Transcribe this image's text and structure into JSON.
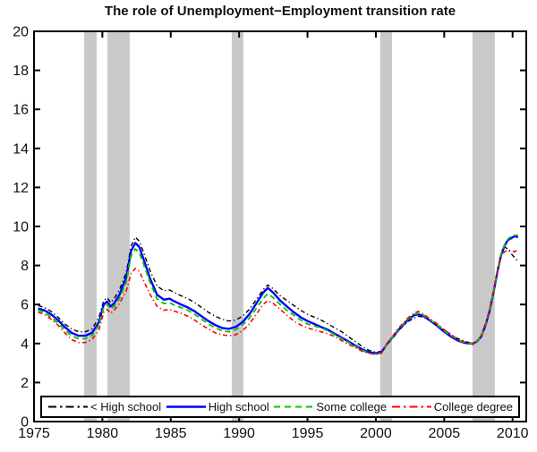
{
  "title": "The role of Unemployment−Employment transition rate",
  "colors": {
    "background": "#ffffff",
    "axis": "#000000",
    "recession_band": "#c9c9c9",
    "legend_border": "#000000"
  },
  "chart_data": {
    "type": "line",
    "title": "The role of Unemployment−Employment transition rate",
    "xlabel": "",
    "ylabel": "",
    "xlim": [
      1975,
      2011
    ],
    "ylim": [
      0,
      20
    ],
    "x_ticks": [
      1975,
      1980,
      1985,
      1990,
      1995,
      2000,
      2005,
      2010
    ],
    "y_ticks": [
      0,
      2,
      4,
      6,
      8,
      10,
      12,
      14,
      16,
      18,
      20
    ],
    "grid": false,
    "legend_position": "bottom-inside-horizontal",
    "shaded_regions": [
      {
        "name": "recession-band",
        "x0": 1978.67,
        "x1": 1979.58
      },
      {
        "name": "recession-band",
        "x0": 1980.37,
        "x1": 1982.0
      },
      {
        "name": "recession-band",
        "x0": 1989.46,
        "x1": 1990.31
      },
      {
        "name": "recession-band",
        "x0": 2000.32,
        "x1": 2001.18
      },
      {
        "name": "recession-band",
        "x0": 2007.07,
        "x1": 2008.7
      }
    ],
    "x": [
      1975.3,
      1975.75,
      1976.25,
      1976.75,
      1977.25,
      1977.75,
      1978.25,
      1978.75,
      1979.25,
      1979.75,
      1980.1,
      1980.35,
      1980.6,
      1980.85,
      1981.25,
      1981.75,
      1982.1,
      1982.4,
      1982.7,
      1983.0,
      1983.5,
      1984.0,
      1984.5,
      1984.9,
      1985.3,
      1985.75,
      1986.25,
      1986.75,
      1987.25,
      1987.75,
      1988.25,
      1988.75,
      1989.25,
      1989.75,
      1990.25,
      1990.75,
      1991.25,
      1991.75,
      1992.1,
      1992.5,
      1993.0,
      1993.5,
      1994.0,
      1994.5,
      1995.0,
      1995.5,
      1996.0,
      1996.5,
      1997.0,
      1997.5,
      1998.0,
      1998.5,
      1999.0,
      1999.5,
      2000.0,
      2000.4,
      2000.8,
      2001.2,
      2001.6,
      2002.0,
      2002.4,
      2002.8,
      2003.1,
      2003.5,
      2004.0,
      2004.5,
      2005.0,
      2005.5,
      2006.0,
      2006.4,
      2006.8,
      2007.1,
      2007.4,
      2007.7,
      2008.0,
      2008.3,
      2008.6,
      2008.9,
      2009.15,
      2009.4,
      2009.65,
      2009.9,
      2010.15,
      2010.4
    ],
    "series": [
      {
        "name": "< High school",
        "color": "#000000",
        "line_style": "dashdot",
        "values": [
          5.95,
          5.85,
          5.65,
          5.35,
          5.0,
          4.75,
          4.6,
          4.6,
          4.75,
          5.35,
          6.2,
          6.35,
          6.1,
          6.3,
          6.75,
          7.65,
          9.0,
          9.45,
          9.25,
          8.7,
          7.7,
          6.95,
          6.7,
          6.75,
          6.6,
          6.45,
          6.3,
          6.1,
          5.85,
          5.6,
          5.4,
          5.25,
          5.15,
          5.2,
          5.4,
          5.75,
          6.25,
          6.75,
          7.0,
          6.8,
          6.45,
          6.2,
          5.95,
          5.7,
          5.5,
          5.35,
          5.2,
          5.0,
          4.8,
          4.6,
          4.35,
          4.1,
          3.85,
          3.65,
          3.55,
          3.6,
          3.95,
          4.25,
          4.6,
          4.9,
          5.15,
          5.3,
          5.4,
          5.35,
          5.15,
          4.95,
          4.7,
          4.45,
          4.25,
          4.15,
          4.05,
          4.0,
          4.1,
          4.35,
          4.95,
          5.65,
          6.7,
          7.8,
          8.55,
          8.95,
          8.85,
          8.6,
          8.4,
          8.2
        ]
      },
      {
        "name": "High school",
        "color": "#0000ff",
        "line_style": "solid",
        "values": [
          5.8,
          5.7,
          5.5,
          5.2,
          4.85,
          4.55,
          4.4,
          4.4,
          4.55,
          5.1,
          6.0,
          6.15,
          5.9,
          6.05,
          6.5,
          7.4,
          8.75,
          9.15,
          8.95,
          8.35,
          7.3,
          6.5,
          6.25,
          6.3,
          6.15,
          6.0,
          5.85,
          5.65,
          5.4,
          5.15,
          4.95,
          4.8,
          4.75,
          4.85,
          5.1,
          5.5,
          6.05,
          6.6,
          6.85,
          6.6,
          6.2,
          5.9,
          5.6,
          5.35,
          5.15,
          5.0,
          4.85,
          4.7,
          4.5,
          4.3,
          4.1,
          3.9,
          3.7,
          3.55,
          3.5,
          3.55,
          3.95,
          4.3,
          4.65,
          4.95,
          5.25,
          5.45,
          5.5,
          5.4,
          5.15,
          4.9,
          4.6,
          4.35,
          4.15,
          4.05,
          4.0,
          4.0,
          4.1,
          4.35,
          4.9,
          5.6,
          6.6,
          7.7,
          8.5,
          9.0,
          9.3,
          9.4,
          9.5,
          9.45
        ]
      },
      {
        "name": "Some college",
        "color": "#00cc00",
        "line_style": "dashed",
        "values": [
          5.7,
          5.6,
          5.35,
          5.05,
          4.7,
          4.4,
          4.25,
          4.25,
          4.4,
          4.95,
          5.85,
          6.0,
          5.75,
          5.9,
          6.3,
          7.15,
          8.5,
          8.85,
          8.65,
          8.1,
          7.1,
          6.3,
          6.05,
          6.1,
          5.95,
          5.85,
          5.7,
          5.5,
          5.25,
          5.0,
          4.8,
          4.65,
          4.6,
          4.7,
          4.95,
          5.3,
          5.8,
          6.3,
          6.55,
          6.35,
          6.0,
          5.7,
          5.45,
          5.2,
          5.0,
          4.9,
          4.8,
          4.65,
          4.45,
          4.25,
          4.05,
          3.85,
          3.65,
          3.5,
          3.45,
          3.5,
          3.95,
          4.3,
          4.7,
          5.0,
          5.3,
          5.5,
          5.55,
          5.45,
          5.2,
          4.95,
          4.65,
          4.4,
          4.2,
          4.05,
          4.0,
          4.0,
          4.1,
          4.35,
          4.95,
          5.65,
          6.65,
          7.75,
          8.55,
          9.05,
          9.35,
          9.5,
          9.55,
          9.55
        ]
      },
      {
        "name": "College degree",
        "color": "#ff0000",
        "line_style": "dashdot",
        "values": [
          5.6,
          5.5,
          5.25,
          4.95,
          4.55,
          4.2,
          4.05,
          4.05,
          4.2,
          4.7,
          5.6,
          5.75,
          5.55,
          5.7,
          6.05,
          6.7,
          7.6,
          7.85,
          7.7,
          7.25,
          6.5,
          5.9,
          5.7,
          5.75,
          5.65,
          5.55,
          5.4,
          5.2,
          4.95,
          4.75,
          4.55,
          4.45,
          4.4,
          4.45,
          4.65,
          5.0,
          5.5,
          6.0,
          6.2,
          6.05,
          5.75,
          5.45,
          5.15,
          4.95,
          4.8,
          4.7,
          4.6,
          4.5,
          4.35,
          4.15,
          3.95,
          3.8,
          3.6,
          3.5,
          3.45,
          3.5,
          4.0,
          4.35,
          4.75,
          5.05,
          5.35,
          5.55,
          5.65,
          5.5,
          5.25,
          5.0,
          4.7,
          4.45,
          4.2,
          4.1,
          4.0,
          3.95,
          4.15,
          4.4,
          5.0,
          5.7,
          6.7,
          7.75,
          8.45,
          8.7,
          8.8,
          8.75,
          8.7,
          8.8
        ]
      }
    ]
  }
}
